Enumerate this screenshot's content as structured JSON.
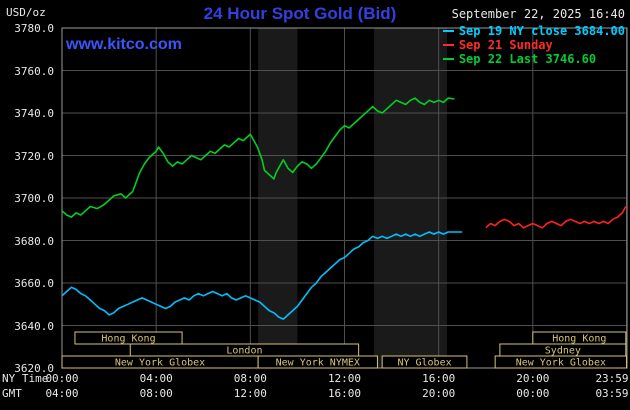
{
  "header": {
    "units_label": "USD/oz",
    "title": "24 Hour Spot Gold (Bid)",
    "datetime": "September 22, 2025 16:40",
    "watermark": "www.kitco.com"
  },
  "chart_data": {
    "type": "line",
    "title": "24 Hour Spot Gold (Bid)",
    "ylabel": "USD/oz",
    "ylim": [
      3620,
      3780
    ],
    "ytick_step": 20,
    "ytick_labels": [
      "3780.0",
      "3760.0",
      "3740.0",
      "3720.0",
      "3700.0",
      "3680.0",
      "3660.0",
      "3640.0",
      "3620.0"
    ],
    "xlim_hours": [
      0,
      24
    ],
    "grid": true,
    "grid_color": "#4f4f4f",
    "border_color": "#9a9a9a",
    "band_color": "#1a1a1a",
    "shaded_bands": [
      [
        8.33,
        10.0
      ],
      [
        13.25,
        16.35
      ]
    ],
    "x_axis": {
      "ny_time_label": "NY Time",
      "gmt_label": "GMT",
      "tick_hours": [
        0,
        4,
        8,
        12,
        16,
        20,
        23.983
      ],
      "ny_time_ticks": [
        "00:00",
        "04:00",
        "08:00",
        "12:00",
        "16:00",
        "20:00",
        "23:59"
      ],
      "gmt_ticks": [
        "04:00",
        "08:00",
        "12:00",
        "16:00",
        "20:00",
        "00:00",
        "03:59"
      ]
    },
    "legend": [
      {
        "key": "sep-19",
        "label": "Sep 19 NY close 3684.00",
        "color": "#00ccff"
      },
      {
        "key": "sep-21",
        "label": "Sep 21 Sunday",
        "color": "#ff2a2a"
      },
      {
        "key": "sep-22",
        "label": "Sep 22 Last 3746.60",
        "color": "#00cc33"
      }
    ],
    "session_color": "#d6c479",
    "sessions": [
      {
        "row": 0,
        "start": 0.55,
        "end": 5.1,
        "label": "Hong Kong"
      },
      {
        "row": 0,
        "start": 20.0,
        "end": 23.95,
        "label": "Hong Kong"
      },
      {
        "row": 1,
        "start": 2.9,
        "end": 12.6,
        "label": "London"
      },
      {
        "row": 1,
        "start": 18.6,
        "end": 23.95,
        "label": "Sydney"
      },
      {
        "row": 2,
        "start": 0.0,
        "end": 8.33,
        "label": "New York Globex"
      },
      {
        "row": 2,
        "start": 8.33,
        "end": 13.4,
        "label": "New York NYMEX"
      },
      {
        "row": 2,
        "start": 13.6,
        "end": 17.2,
        "label": "NY Globex"
      },
      {
        "row": 2,
        "start": 18.4,
        "end": 23.98,
        "label": "New York Globex"
      }
    ],
    "series": [
      {
        "key": "sep-19",
        "name": "Sep 19 NY close",
        "color": "#00bfff",
        "last": 3684.0,
        "points": [
          [
            0,
            3654
          ],
          [
            0.2,
            3656
          ],
          [
            0.4,
            3658
          ],
          [
            0.6,
            3657
          ],
          [
            0.8,
            3655
          ],
          [
            1.0,
            3654
          ],
          [
            1.2,
            3652
          ],
          [
            1.4,
            3650
          ],
          [
            1.6,
            3648
          ],
          [
            1.8,
            3647
          ],
          [
            2.0,
            3645
          ],
          [
            2.2,
            3646
          ],
          [
            2.4,
            3648
          ],
          [
            2.6,
            3649
          ],
          [
            2.8,
            3650
          ],
          [
            3.0,
            3651
          ],
          [
            3.2,
            3652
          ],
          [
            3.4,
            3653
          ],
          [
            3.6,
            3652
          ],
          [
            3.8,
            3651
          ],
          [
            4.0,
            3650
          ],
          [
            4.2,
            3649
          ],
          [
            4.4,
            3648
          ],
          [
            4.6,
            3649
          ],
          [
            4.8,
            3651
          ],
          [
            5.0,
            3652
          ],
          [
            5.2,
            3653
          ],
          [
            5.4,
            3652
          ],
          [
            5.6,
            3654
          ],
          [
            5.8,
            3655
          ],
          [
            6.0,
            3654
          ],
          [
            6.2,
            3655
          ],
          [
            6.4,
            3656
          ],
          [
            6.6,
            3655
          ],
          [
            6.8,
            3654
          ],
          [
            7.0,
            3655
          ],
          [
            7.2,
            3653
          ],
          [
            7.4,
            3652
          ],
          [
            7.6,
            3653
          ],
          [
            7.8,
            3654
          ],
          [
            8.0,
            3653
          ],
          [
            8.2,
            3652
          ],
          [
            8.4,
            3651
          ],
          [
            8.6,
            3649
          ],
          [
            8.8,
            3647
          ],
          [
            9.0,
            3646
          ],
          [
            9.2,
            3644
          ],
          [
            9.4,
            3643
          ],
          [
            9.6,
            3645
          ],
          [
            9.8,
            3647
          ],
          [
            10.0,
            3649
          ],
          [
            10.2,
            3652
          ],
          [
            10.4,
            3655
          ],
          [
            10.6,
            3658
          ],
          [
            10.8,
            3660
          ],
          [
            11.0,
            3663
          ],
          [
            11.2,
            3665
          ],
          [
            11.4,
            3667
          ],
          [
            11.6,
            3669
          ],
          [
            11.8,
            3671
          ],
          [
            12.0,
            3672
          ],
          [
            12.2,
            3674
          ],
          [
            12.4,
            3676
          ],
          [
            12.6,
            3677
          ],
          [
            12.8,
            3679
          ],
          [
            13.0,
            3680
          ],
          [
            13.2,
            3682
          ],
          [
            13.4,
            3681
          ],
          [
            13.6,
            3682
          ],
          [
            13.8,
            3681
          ],
          [
            14.0,
            3682
          ],
          [
            14.2,
            3683
          ],
          [
            14.4,
            3682
          ],
          [
            14.6,
            3683
          ],
          [
            14.8,
            3682
          ],
          [
            15.0,
            3683
          ],
          [
            15.2,
            3682
          ],
          [
            15.4,
            3683
          ],
          [
            15.6,
            3684
          ],
          [
            15.8,
            3683
          ],
          [
            16.0,
            3684
          ],
          [
            16.2,
            3683
          ],
          [
            16.4,
            3684
          ],
          [
            16.7,
            3684
          ],
          [
            17.0,
            3684
          ]
        ]
      },
      {
        "key": "sep-21",
        "name": "Sep 21 Sunday",
        "color": "#ff2020",
        "last": 3696,
        "points": [
          [
            18.0,
            3686
          ],
          [
            18.2,
            3688
          ],
          [
            18.4,
            3687
          ],
          [
            18.6,
            3689
          ],
          [
            18.8,
            3690
          ],
          [
            19.0,
            3689
          ],
          [
            19.2,
            3687
          ],
          [
            19.4,
            3688
          ],
          [
            19.6,
            3686
          ],
          [
            19.8,
            3687
          ],
          [
            20.0,
            3688
          ],
          [
            20.2,
            3687
          ],
          [
            20.4,
            3686
          ],
          [
            20.6,
            3688
          ],
          [
            20.8,
            3689
          ],
          [
            21.0,
            3688
          ],
          [
            21.2,
            3687
          ],
          [
            21.4,
            3689
          ],
          [
            21.6,
            3690
          ],
          [
            21.8,
            3689
          ],
          [
            22.0,
            3688
          ],
          [
            22.2,
            3689
          ],
          [
            22.4,
            3688
          ],
          [
            22.6,
            3689
          ],
          [
            22.8,
            3688
          ],
          [
            23.0,
            3689
          ],
          [
            23.2,
            3688
          ],
          [
            23.4,
            3690
          ],
          [
            23.6,
            3691
          ],
          [
            23.8,
            3693
          ],
          [
            23.95,
            3696
          ]
        ]
      },
      {
        "key": "sep-22",
        "name": "Sep 22",
        "color": "#00d020",
        "last": 3746.6,
        "points": [
          [
            0,
            3694
          ],
          [
            0.2,
            3692
          ],
          [
            0.4,
            3691
          ],
          [
            0.6,
            3693
          ],
          [
            0.8,
            3692
          ],
          [
            1.0,
            3694
          ],
          [
            1.2,
            3696
          ],
          [
            1.5,
            3695
          ],
          [
            1.8,
            3697
          ],
          [
            2.0,
            3699
          ],
          [
            2.2,
            3701
          ],
          [
            2.5,
            3702
          ],
          [
            2.7,
            3700
          ],
          [
            3.0,
            3703
          ],
          [
            3.1,
            3706
          ],
          [
            3.3,
            3712
          ],
          [
            3.5,
            3716
          ],
          [
            3.7,
            3719
          ],
          [
            3.9,
            3721
          ],
          [
            4.0,
            3722
          ],
          [
            4.1,
            3724
          ],
          [
            4.3,
            3721
          ],
          [
            4.5,
            3717
          ],
          [
            4.7,
            3715
          ],
          [
            4.9,
            3717
          ],
          [
            5.1,
            3716
          ],
          [
            5.3,
            3718
          ],
          [
            5.5,
            3720
          ],
          [
            5.7,
            3719
          ],
          [
            5.9,
            3718
          ],
          [
            6.1,
            3720
          ],
          [
            6.3,
            3722
          ],
          [
            6.5,
            3721
          ],
          [
            6.7,
            3723
          ],
          [
            6.9,
            3725
          ],
          [
            7.1,
            3724
          ],
          [
            7.3,
            3726
          ],
          [
            7.5,
            3728
          ],
          [
            7.7,
            3727
          ],
          [
            7.9,
            3729
          ],
          [
            8.0,
            3730
          ],
          [
            8.1,
            3728
          ],
          [
            8.3,
            3724
          ],
          [
            8.5,
            3718
          ],
          [
            8.6,
            3713
          ],
          [
            8.8,
            3711
          ],
          [
            9.0,
            3709
          ],
          [
            9.1,
            3712
          ],
          [
            9.3,
            3716
          ],
          [
            9.4,
            3718
          ],
          [
            9.6,
            3714
          ],
          [
            9.8,
            3712
          ],
          [
            10.0,
            3715
          ],
          [
            10.2,
            3717
          ],
          [
            10.4,
            3716
          ],
          [
            10.6,
            3714
          ],
          [
            10.8,
            3716
          ],
          [
            11.0,
            3719
          ],
          [
            11.2,
            3722
          ],
          [
            11.4,
            3726
          ],
          [
            11.6,
            3729
          ],
          [
            11.8,
            3732
          ],
          [
            12.0,
            3734
          ],
          [
            12.2,
            3733
          ],
          [
            12.4,
            3735
          ],
          [
            12.6,
            3737
          ],
          [
            12.8,
            3739
          ],
          [
            13.0,
            3741
          ],
          [
            13.2,
            3743
          ],
          [
            13.4,
            3741
          ],
          [
            13.6,
            3740
          ],
          [
            13.8,
            3742
          ],
          [
            14.0,
            3744
          ],
          [
            14.2,
            3746
          ],
          [
            14.4,
            3745
          ],
          [
            14.6,
            3744
          ],
          [
            14.8,
            3746
          ],
          [
            15.0,
            3747
          ],
          [
            15.2,
            3745
          ],
          [
            15.4,
            3744
          ],
          [
            15.6,
            3746
          ],
          [
            15.8,
            3745
          ],
          [
            16.0,
            3746
          ],
          [
            16.2,
            3745
          ],
          [
            16.4,
            3747
          ],
          [
            16.67,
            3746.6
          ]
        ]
      }
    ]
  }
}
